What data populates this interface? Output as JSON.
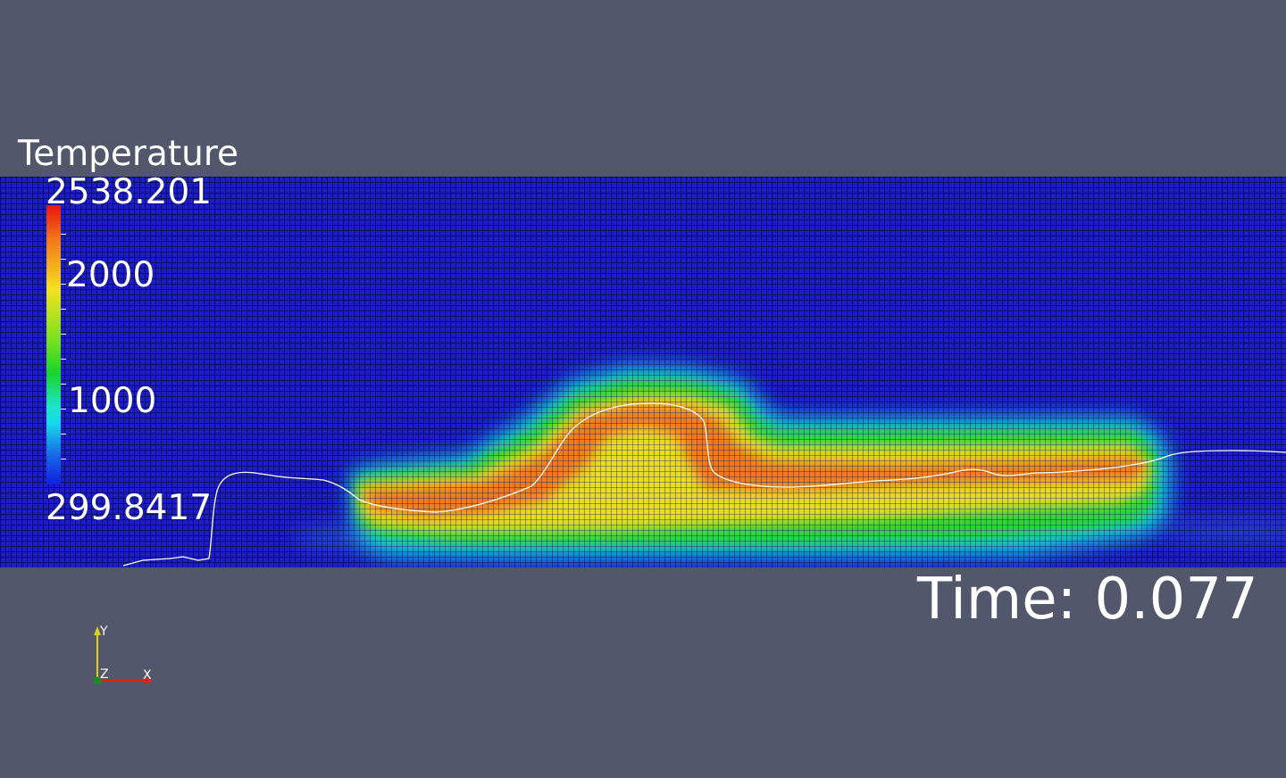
{
  "legend": {
    "title": "Temperature",
    "max_label": "2538.201",
    "label_2000": "2000",
    "label_1000": "1000",
    "min_label": "299.8417",
    "max_value": 2538.201,
    "min_value": 299.8417,
    "colors": [
      "#e8140e",
      "#f2761a",
      "#f3e21e",
      "#7be21e",
      "#1ad32a",
      "#1ee3c8",
      "#18d8ec",
      "#1764e6",
      "#0f20e0"
    ]
  },
  "time": {
    "label": "Time: 0.077"
  },
  "axes": {
    "x_label": "X",
    "y_label": "Y",
    "z_label": "Z"
  },
  "colors": {
    "background": "#52576b",
    "mesh_fill": "#1d1dc4",
    "contour": "#ffffff"
  }
}
